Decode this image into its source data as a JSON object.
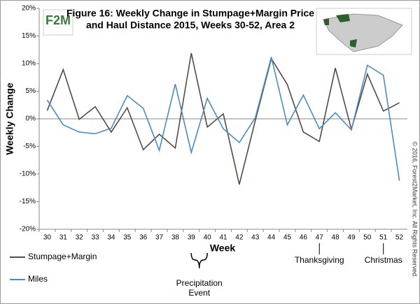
{
  "chart_data": {
    "type": "line",
    "title": [
      "Figure 16: Weekly Change in Stumpage+Margin Price",
      "and Haul Distance 2015, Weeks 30-52, Area 2"
    ],
    "x_label": "Week",
    "y_label": "Weekly Change",
    "categories": [
      "30",
      "31",
      "32",
      "33",
      "34",
      "35",
      "36",
      "37",
      "38",
      "39",
      "40",
      "41",
      "42",
      "43",
      "44",
      "45",
      "46",
      "47",
      "48",
      "49",
      "50",
      "51",
      "52"
    ],
    "series": [
      {
        "name": "Stumpage+Margin",
        "color": "#584a42",
        "values": [
          1.5,
          8.9,
          -0.1,
          2.2,
          -2.4,
          2.0,
          -5.6,
          -2.8,
          -5.3,
          11.9,
          -1.5,
          0.9,
          -11.9,
          -0.3,
          10.9,
          6.2,
          -2.4,
          -4.1,
          9.2,
          -1.9,
          8.1,
          1.4,
          2.9
        ]
      },
      {
        "name": "Miles",
        "color": "#4a8cc2",
        "values": [
          3.4,
          -1.1,
          -2.4,
          -2.7,
          -1.7,
          4.2,
          1.9,
          -5.7,
          6.3,
          -6.1,
          3.7,
          -1.8,
          -4.3,
          0.2,
          11.2,
          -1.1,
          4.3,
          -1.8,
          1.1,
          -2.0,
          9.7,
          7.9,
          -11.2
        ]
      }
    ],
    "ylim": [
      -20,
      20
    ],
    "yticks": [
      {
        "value": -20,
        "label": "-20%"
      },
      {
        "value": -15,
        "label": "-15%"
      },
      {
        "value": -10,
        "label": "-10%"
      },
      {
        "value": -5,
        "label": "-5%"
      },
      {
        "value": 0,
        "label": "0%"
      },
      {
        "value": 5,
        "label": "5%"
      },
      {
        "value": 10,
        "label": "10%"
      },
      {
        "value": 15,
        "label": "15%"
      },
      {
        "value": 20,
        "label": "20%"
      }
    ],
    "grid": false,
    "annotations": [
      {
        "text": [
          "Precipitation",
          "Event"
        ],
        "from": "39",
        "to": "40"
      },
      {
        "text": [
          "Thanksgiving"
        ],
        "from": "47",
        "to": "47"
      },
      {
        "text": [
          "Christmas"
        ],
        "from": "51",
        "to": "51"
      }
    ],
    "logo_text": "F2M",
    "copyright": "© 2016, Forest2Market, Inc. All Rights Reserved."
  }
}
